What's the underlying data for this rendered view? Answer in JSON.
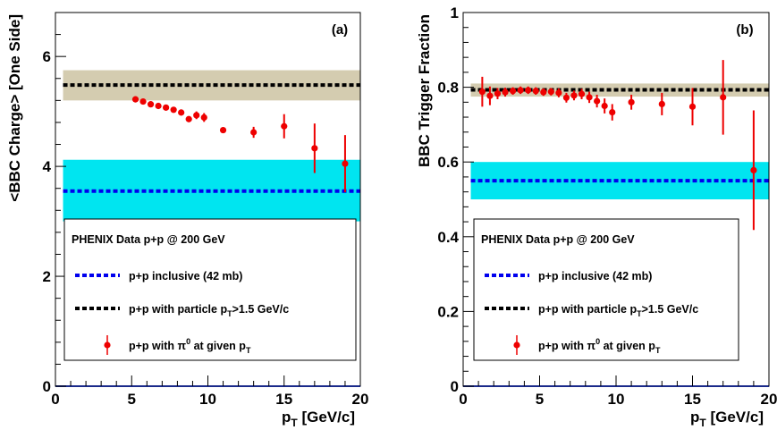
{
  "chart_data": [
    {
      "type": "scatter",
      "panel_label": "(a)",
      "xlabel": "p_T [GeV/c]",
      "ylabel": "<BBC Charge> [One Side]",
      "xlim": [
        0,
        20
      ],
      "ylim": [
        0,
        6.8
      ],
      "x_ticks": [
        0,
        5,
        10,
        15,
        20
      ],
      "y_ticks": [
        0,
        2,
        4,
        6
      ],
      "y_tick_labels": [
        "0",
        "2",
        "4",
        "6"
      ],
      "bands": [
        {
          "name": "p+p inclusive (42 mb)",
          "value": 3.55,
          "low": 3.0,
          "high": 4.12,
          "x_range": [
            0.5,
            20
          ],
          "line_color": "#0000ee",
          "band_color": "#00e5f0"
        },
        {
          "name": "p+p with particle pT>1.5 GeV/c",
          "value": 5.48,
          "low": 5.2,
          "high": 5.75,
          "x_range": [
            0.5,
            20
          ],
          "line_color": "#000000",
          "band_color": "#d4ccb0"
        }
      ],
      "series": [
        {
          "name": "p+p with π0 at given pT",
          "color": "#ee0000",
          "x": [
            5.25,
            5.75,
            6.25,
            6.75,
            7.25,
            7.75,
            8.25,
            8.75,
            9.25,
            9.75,
            11,
            13,
            15,
            17,
            19
          ],
          "y": [
            5.22,
            5.18,
            5.13,
            5.1,
            5.07,
            5.03,
            4.98,
            4.86,
            4.93,
            4.89,
            4.66,
            4.62,
            4.73,
            4.33,
            4.05
          ],
          "err": [
            0.03,
            0.03,
            0.03,
            0.03,
            0.03,
            0.03,
            0.04,
            0.05,
            0.07,
            0.08,
            0.05,
            0.1,
            0.22,
            0.45,
            0.52
          ]
        }
      ],
      "legend": {
        "title": "PHENIX Data p+p @ 200 GeV",
        "entries": [
          {
            "text": "p+p inclusive (42 mb)",
            "style": "blue-dash"
          },
          {
            "text": "p+p with particle p",
            "sub": "T",
            "tail": ">1.5 GeV/c",
            "style": "black-dash"
          },
          {
            "text": "p+p with π",
            "sup": "0",
            "tail": " at given p",
            "sub2": "T",
            "style": "red-marker"
          }
        ]
      }
    },
    {
      "type": "scatter",
      "panel_label": "(b)",
      "xlabel": "p_T [GeV/c]",
      "ylabel": "BBC Trigger Fraction",
      "xlim": [
        0,
        20
      ],
      "ylim": [
        0,
        1
      ],
      "x_ticks": [
        0,
        5,
        10,
        15,
        20
      ],
      "y_ticks": [
        0,
        0.2,
        0.4,
        0.6,
        0.8,
        1
      ],
      "y_tick_labels": [
        "0",
        "0.2",
        "0.4",
        "0.6",
        "0.8",
        "1"
      ],
      "bands": [
        {
          "name": "p+p inclusive (42 mb)",
          "value": 0.55,
          "low": 0.5,
          "high": 0.6,
          "x_range": [
            0.5,
            20
          ],
          "line_color": "#0000ee",
          "band_color": "#00e5f0"
        },
        {
          "name": "p+p with particle pT>1.5 GeV/c",
          "value": 0.793,
          "low": 0.775,
          "high": 0.81,
          "x_range": [
            0.5,
            20
          ],
          "line_color": "#000000",
          "band_color": "#d4ccb0"
        }
      ],
      "series": [
        {
          "name": "p+p with π0 at given pT",
          "color": "#ee0000",
          "x": [
            1.25,
            1.75,
            2.25,
            2.75,
            3.25,
            3.75,
            4.25,
            4.75,
            5.25,
            5.75,
            6.25,
            6.75,
            7.25,
            7.75,
            8.25,
            8.75,
            9.25,
            9.75,
            11,
            13,
            15,
            17,
            19
          ],
          "y": [
            0.788,
            0.777,
            0.783,
            0.787,
            0.79,
            0.792,
            0.792,
            0.79,
            0.787,
            0.788,
            0.785,
            0.772,
            0.778,
            0.782,
            0.773,
            0.763,
            0.75,
            0.733,
            0.76,
            0.755,
            0.748,
            0.773,
            0.578
          ],
          "err": [
            0.04,
            0.025,
            0.015,
            0.012,
            0.01,
            0.01,
            0.01,
            0.01,
            0.01,
            0.01,
            0.012,
            0.013,
            0.013,
            0.014,
            0.015,
            0.017,
            0.02,
            0.022,
            0.02,
            0.03,
            0.05,
            0.1,
            0.16
          ]
        }
      ],
      "legend": {
        "title": "PHENIX Data p+p @ 200 GeV",
        "entries": [
          {
            "text": "p+p inclusive (42 mb)",
            "style": "blue-dash"
          },
          {
            "text": "p+p with particle p",
            "sub": "T",
            "tail": ">1.5 GeV/c",
            "style": "black-dash"
          },
          {
            "text": "p+p with π",
            "sup": "0",
            "tail": " at given p",
            "sub2": "T",
            "style": "red-marker"
          }
        ]
      }
    }
  ]
}
